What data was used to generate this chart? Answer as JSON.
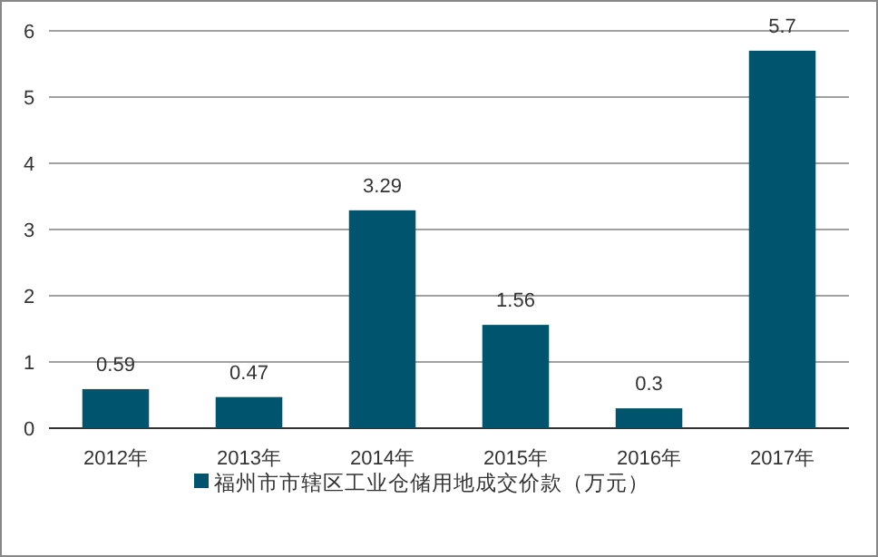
{
  "chart_data": {
    "type": "bar",
    "categories": [
      "2012年",
      "2013年",
      "2014年",
      "2015年",
      "2016年",
      "2017年"
    ],
    "series": [
      {
        "name": "福州市市辖区工业仓储用地成交价款（万元）",
        "color": "#00546e",
        "values": [
          0.59,
          0.47,
          3.29,
          1.56,
          0.3,
          5.7
        ]
      }
    ],
    "ylim": [
      0,
      6
    ],
    "yticks": [
      0,
      1,
      2,
      3,
      4,
      5,
      6
    ],
    "grid": "y",
    "legend": "bottom",
    "data_labels": true
  }
}
